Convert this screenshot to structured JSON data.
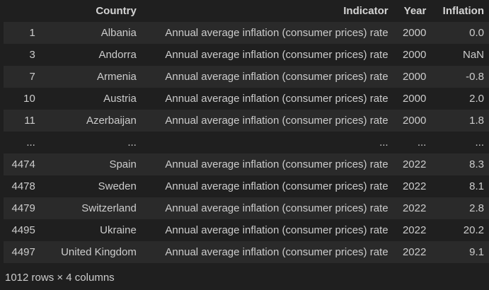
{
  "table": {
    "headers": {
      "index": "",
      "country": "Country",
      "indicator": "Indicator",
      "year": "Year",
      "inflation": "Inflation"
    },
    "rows": [
      {
        "index": "1",
        "country": "Albania",
        "indicator": "Annual average inflation (consumer prices) rate",
        "year": "2000",
        "inflation": "0.0"
      },
      {
        "index": "3",
        "country": "Andorra",
        "indicator": "Annual average inflation (consumer prices) rate",
        "year": "2000",
        "inflation": "NaN"
      },
      {
        "index": "7",
        "country": "Armenia",
        "indicator": "Annual average inflation (consumer prices) rate",
        "year": "2000",
        "inflation": "-0.8"
      },
      {
        "index": "10",
        "country": "Austria",
        "indicator": "Annual average inflation (consumer prices) rate",
        "year": "2000",
        "inflation": "2.0"
      },
      {
        "index": "11",
        "country": "Azerbaijan",
        "indicator": "Annual average inflation (consumer prices) rate",
        "year": "2000",
        "inflation": "1.8"
      },
      {
        "index": "...",
        "country": "...",
        "indicator": "...",
        "year": "...",
        "inflation": "..."
      },
      {
        "index": "4474",
        "country": "Spain",
        "indicator": "Annual average inflation (consumer prices) rate",
        "year": "2022",
        "inflation": "8.3"
      },
      {
        "index": "4478",
        "country": "Sweden",
        "indicator": "Annual average inflation (consumer prices) rate",
        "year": "2022",
        "inflation": "8.1"
      },
      {
        "index": "4479",
        "country": "Switzerland",
        "indicator": "Annual average inflation (consumer prices) rate",
        "year": "2022",
        "inflation": "2.8"
      },
      {
        "index": "4495",
        "country": "Ukraine",
        "indicator": "Annual average inflation (consumer prices) rate",
        "year": "2022",
        "inflation": "20.2"
      },
      {
        "index": "4497",
        "country": "United Kingdom",
        "indicator": "Annual average inflation (consumer prices) rate",
        "year": "2022",
        "inflation": "9.1"
      }
    ],
    "shape_note": "1012 rows × 4 columns"
  }
}
